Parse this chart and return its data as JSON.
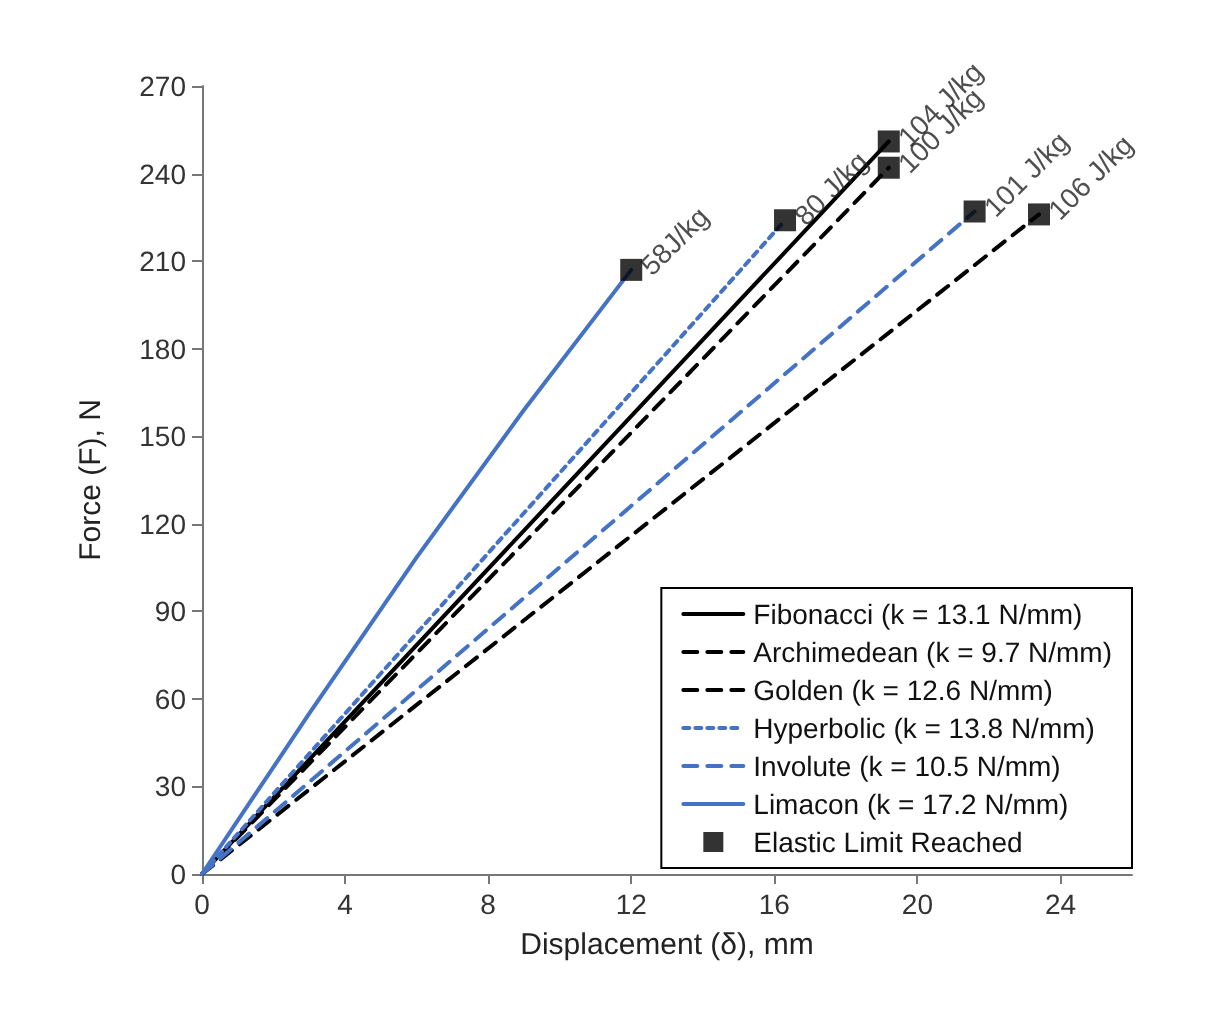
{
  "chart_data": {
    "type": "line",
    "xlabel": "Displacement (δ), mm",
    "ylabel": "Force (F), N",
    "xlim": [
      0,
      26
    ],
    "xticks": [
      0,
      4,
      8,
      12,
      16,
      20,
      24
    ],
    "ylim": [
      0,
      270
    ],
    "yticks": [
      0,
      30,
      60,
      90,
      120,
      150,
      180,
      210,
      240,
      270
    ],
    "grid": false,
    "legend": "bottom right",
    "marker": "none",
    "series": [
      {
        "name": "Fibonacci (k = 13.1 N/mm)",
        "color": "#000000",
        "line_style": "solid",
        "x": [
          0,
          19.2
        ],
        "values": [
          0,
          251
        ]
      },
      {
        "name": "Archimedean (k = 9.7 N/mm)",
        "color": "#000000",
        "line_style": "dashed",
        "x": [
          0,
          23.4
        ],
        "values": [
          0,
          226
        ]
      },
      {
        "name": "Golden (k = 12.6 N/mm)",
        "color": "#000000",
        "line_style": "dashed",
        "x": [
          0,
          19.2
        ],
        "values": [
          0,
          242
        ]
      },
      {
        "name": "Hyperbolic (k = 13.8 N/mm)",
        "color": "#4472c4",
        "line_style": "dotted",
        "x": [
          0,
          16.3
        ],
        "values": [
          0,
          224
        ]
      },
      {
        "name": "Involute (k = 10.5 N/mm)",
        "color": "#4472c4",
        "line_style": "dashed",
        "x": [
          0,
          21.6
        ],
        "values": [
          0,
          227
        ]
      },
      {
        "name": "Limacon (k = 17.2 N/mm)",
        "color": "#4472c4",
        "line_style": "solid",
        "x": [
          0,
          3,
          6,
          9,
          12
        ],
        "values": [
          0,
          55,
          108.5,
          159,
          207
        ]
      },
      {
        "name": "Elastic Limit Reached",
        "type": "scatter",
        "marker": "square",
        "color": "#000000",
        "x": [
          12,
          16.3,
          19.2,
          19.2,
          21.6,
          23.4
        ],
        "values": [
          207,
          224,
          251,
          242,
          227,
          226
        ]
      }
    ],
    "annotations": [
      {
        "text": "58J/kg",
        "x": 12,
        "y": 207
      },
      {
        "text": "80 J/kg",
        "x": 16.3,
        "y": 224
      },
      {
        "text": "104 J/kg",
        "x": 19.2,
        "y": 251
      },
      {
        "text": "100 J/kg",
        "x": 19.2,
        "y": 242
      },
      {
        "text": "101 J/kg",
        "x": 21.6,
        "y": 227
      },
      {
        "text": "106 J/kg",
        "x": 23.4,
        "y": 226
      }
    ]
  }
}
